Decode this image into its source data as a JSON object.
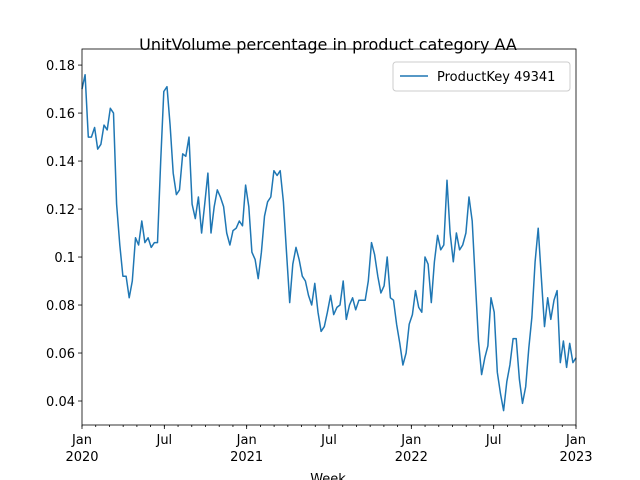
{
  "chart_data": {
    "type": "line",
    "title": "UnitVolume percentage in product category AA",
    "xlabel": "Week",
    "xlim": [
      "2020-01",
      "2023-01"
    ],
    "xticks": [
      {
        "value": "2020-01",
        "label": "Jan\n2020"
      },
      {
        "value": "2020-07",
        "label": "Jul"
      },
      {
        "value": "2021-01",
        "label": "Jan\n2021"
      },
      {
        "value": "2021-07",
        "label": "Jul"
      },
      {
        "value": "2022-01",
        "label": "Jan\n2022"
      },
      {
        "value": "2022-07",
        "label": "Jul"
      },
      {
        "value": "2023-01",
        "label": "Jan\n2023"
      }
    ],
    "ylim": [
      0.03,
      0.1867
    ],
    "yticks": [
      0.04,
      0.06,
      0.08,
      0.1,
      0.12,
      0.14,
      0.16,
      0.18
    ],
    "legend": "upper right",
    "series": [
      {
        "name": "ProductKey 49341",
        "color": "#1f77b4",
        "values": [
          0.17,
          0.176,
          0.15,
          0.15,
          0.154,
          0.145,
          0.147,
          0.155,
          0.153,
          0.162,
          0.16,
          0.122,
          0.105,
          0.092,
          0.092,
          0.083,
          0.09,
          0.108,
          0.105,
          0.115,
          0.106,
          0.108,
          0.104,
          0.106,
          0.106,
          0.14,
          0.169,
          0.171,
          0.155,
          0.135,
          0.126,
          0.128,
          0.143,
          0.142,
          0.15,
          0.122,
          0.116,
          0.125,
          0.11,
          0.122,
          0.135,
          0.11,
          0.121,
          0.128,
          0.125,
          0.121,
          0.11,
          0.105,
          0.111,
          0.112,
          0.115,
          0.113,
          0.13,
          0.121,
          0.102,
          0.099,
          0.091,
          0.102,
          0.117,
          0.123,
          0.125,
          0.136,
          0.134,
          0.136,
          0.123,
          0.102,
          0.081,
          0.097,
          0.104,
          0.099,
          0.092,
          0.09,
          0.084,
          0.08,
          0.089,
          0.077,
          0.069,
          0.071,
          0.077,
          0.084,
          0.076,
          0.079,
          0.08,
          0.09,
          0.074,
          0.08,
          0.083,
          0.078,
          0.082,
          0.082,
          0.082,
          0.09,
          0.106,
          0.101,
          0.092,
          0.085,
          0.088,
          0.1,
          0.083,
          0.082,
          0.072,
          0.064,
          0.055,
          0.06,
          0.072,
          0.076,
          0.086,
          0.079,
          0.077,
          0.1,
          0.097,
          0.081,
          0.098,
          0.109,
          0.103,
          0.105,
          0.132,
          0.11,
          0.098,
          0.11,
          0.103,
          0.105,
          0.11,
          0.125,
          0.115,
          0.09,
          0.065,
          0.051,
          0.058,
          0.063,
          0.083,
          0.077,
          0.052,
          0.043,
          0.036,
          0.048,
          0.055,
          0.066,
          0.066,
          0.049,
          0.039,
          0.046,
          0.062,
          0.075,
          0.098,
          0.112,
          0.091,
          0.071,
          0.083,
          0.074,
          0.082,
          0.086,
          0.056,
          0.065,
          0.054,
          0.064,
          0.056,
          0.058
        ]
      }
    ]
  }
}
